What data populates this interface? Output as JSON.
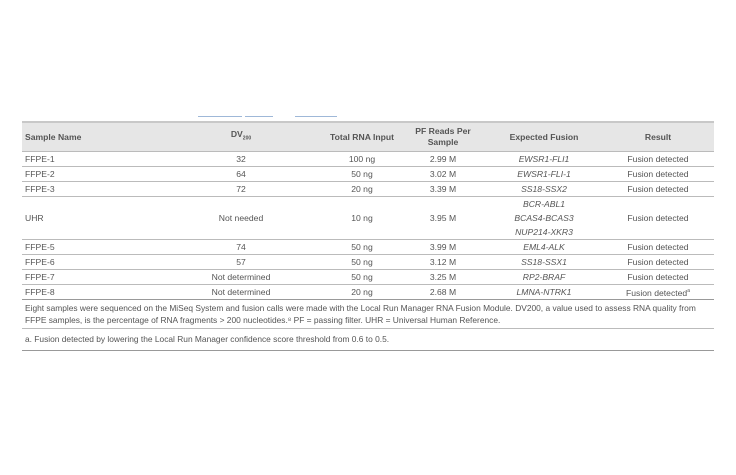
{
  "headers": {
    "sample": "Sample Name",
    "dv": "DV",
    "dv_sub": "200",
    "rna": "Total RNA Input",
    "pf": "PF Reads Per Sample",
    "fusion": "Expected Fusion",
    "result": "Result"
  },
  "rows": [
    {
      "sample": "FFPE-1",
      "dv": "32",
      "rna": "100 ng",
      "pf": "2.99 M",
      "fusion": [
        "EWSR1-FLI1"
      ],
      "result": "Fusion detected"
    },
    {
      "sample": "FFPE-2",
      "dv": "64",
      "rna": "50 ng",
      "pf": "3.02 M",
      "fusion": [
        "EWSR1-FLI-1"
      ],
      "result": "Fusion detected"
    },
    {
      "sample": "FFPE-3",
      "dv": "72",
      "rna": "20 ng",
      "pf": "3.39 M",
      "fusion": [
        "SS18-SSX2"
      ],
      "result": "Fusion detected"
    },
    {
      "sample": "UHR",
      "dv": "Not needed",
      "rna": "10 ng",
      "pf": "3.95 M",
      "fusion": [
        "BCR-ABL1",
        "BCAS4-BCAS3",
        "NUP214-XKR3"
      ],
      "result": "Fusion detected"
    },
    {
      "sample": "FFPE-5",
      "dv": "74",
      "rna": "50 ng",
      "pf": "3.99 M",
      "fusion": [
        "EML4-ALK"
      ],
      "result": "Fusion detected"
    },
    {
      "sample": "FFPE-6",
      "dv": "57",
      "rna": "50 ng",
      "pf": "3.12 M",
      "fusion": [
        "SS18-SSX1"
      ],
      "result": "Fusion detected"
    },
    {
      "sample": "FFPE-7",
      "dv": "Not determined",
      "rna": "50 ng",
      "pf": "3.25 M",
      "fusion": [
        "RP2-BRAF"
      ],
      "result": "Fusion detected"
    },
    {
      "sample": "FFPE-8",
      "dv": "Not determined",
      "rna": "20 ng",
      "pf": "2.68 M",
      "fusion": [
        "LMNA-NTRK1"
      ],
      "result": "Fusion detected",
      "result_sup": "a"
    }
  ],
  "caption": "Eight samples were sequenced on the MiSeq System and fusion calls were made with the Local Run Manager RNA Fusion Module. DV200, a value used to assess RNA quality from FFPE samples, is the percentage of RNA fragments > 200 nucleotides.⁸ PF = passing filter. UHR = Universal Human Reference.",
  "footnote": "a.  Fusion detected by lowering the Local Run Manager confidence score threshold from 0.6 to 0.5."
}
